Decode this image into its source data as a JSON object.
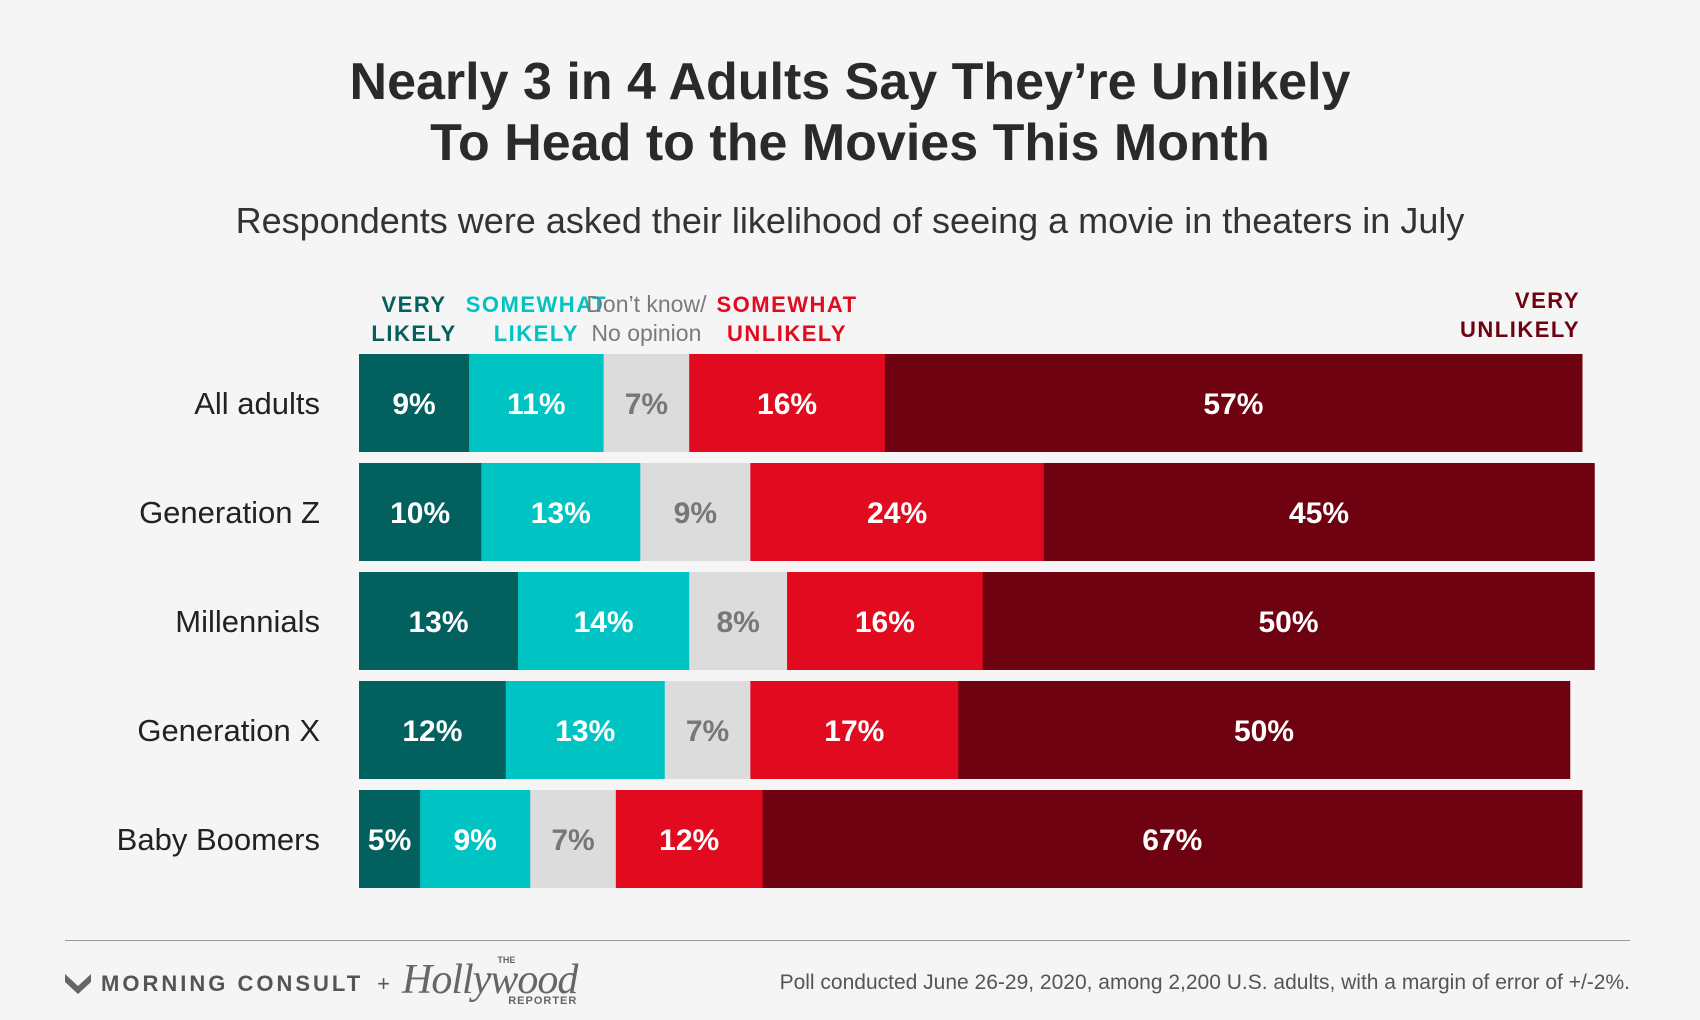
{
  "title": {
    "line1": "Nearly 3 in 4 Adults Say They’re Unlikely",
    "line2": "To Head to the Movies This Month"
  },
  "subtitle": "Respondents were asked their likelihood of seeing a movie in theaters in July",
  "chart_data": {
    "type": "bar",
    "orientation": "horizontal-stacked-100",
    "title": "Nearly 3 in 4 Adults Say They’re Unlikely To Head to the Movies This Month",
    "subtitle": "Respondents were asked their likelihood of seeing a movie in theaters in July",
    "categories": [
      "All adults",
      "Generation Z",
      "Millennials",
      "Generation X",
      "Baby Boomers"
    ],
    "series": [
      {
        "name": "VERY LIKELY",
        "label_lines": [
          "VERY",
          "LIKELY"
        ],
        "color": "#02605e",
        "label_color": "#02605e",
        "text_color": "#ffffff",
        "values": [
          9,
          10,
          13,
          12,
          5
        ]
      },
      {
        "name": "SOMEWHAT LIKELY",
        "label_lines": [
          "SOMEWHAT",
          "LIKELY"
        ],
        "color": "#00c3c3",
        "label_color": "#00c3c3",
        "text_color": "#ffffff",
        "values": [
          11,
          13,
          14,
          13,
          9
        ]
      },
      {
        "name": "Don’t know/ No opinion",
        "label_lines": [
          "Don’t know/",
          "No opinion"
        ],
        "color": "#dcdcdc",
        "label_color": "#7a7a7a",
        "text_color": "#777777",
        "values": [
          7,
          9,
          8,
          7,
          7
        ]
      },
      {
        "name": "SOMEWHAT UNLIKELY",
        "label_lines": [
          "SOMEWHAT",
          "UNLIKELY"
        ],
        "color": "#e20a1e",
        "label_color": "#e20a1e",
        "text_color": "#ffffff",
        "values": [
          16,
          24,
          16,
          17,
          12
        ]
      },
      {
        "name": "VERY UNLIKELY",
        "label_lines": [
          "VERY",
          "UNLIKELY"
        ],
        "color": "#6e0210",
        "label_color": "#6e0210",
        "text_color": "#ffffff",
        "values": [
          57,
          45,
          50,
          50,
          67
        ]
      }
    ],
    "value_suffix": "%",
    "xlim": [
      0,
      100
    ],
    "legend": "top, above bar segments"
  },
  "footer": {
    "morning_consult": "MORNING CONSULT",
    "plus": "+",
    "thr_name": "Hollywood",
    "thr_the": "THE",
    "thr_reporter": "REPORTER",
    "source": "Poll conducted June 26-29, 2020, among 2,200 U.S. adults, with a margin of error of +/-2%."
  },
  "colors": {
    "background": "#f5f5f5",
    "title": "#2a2a2a"
  }
}
